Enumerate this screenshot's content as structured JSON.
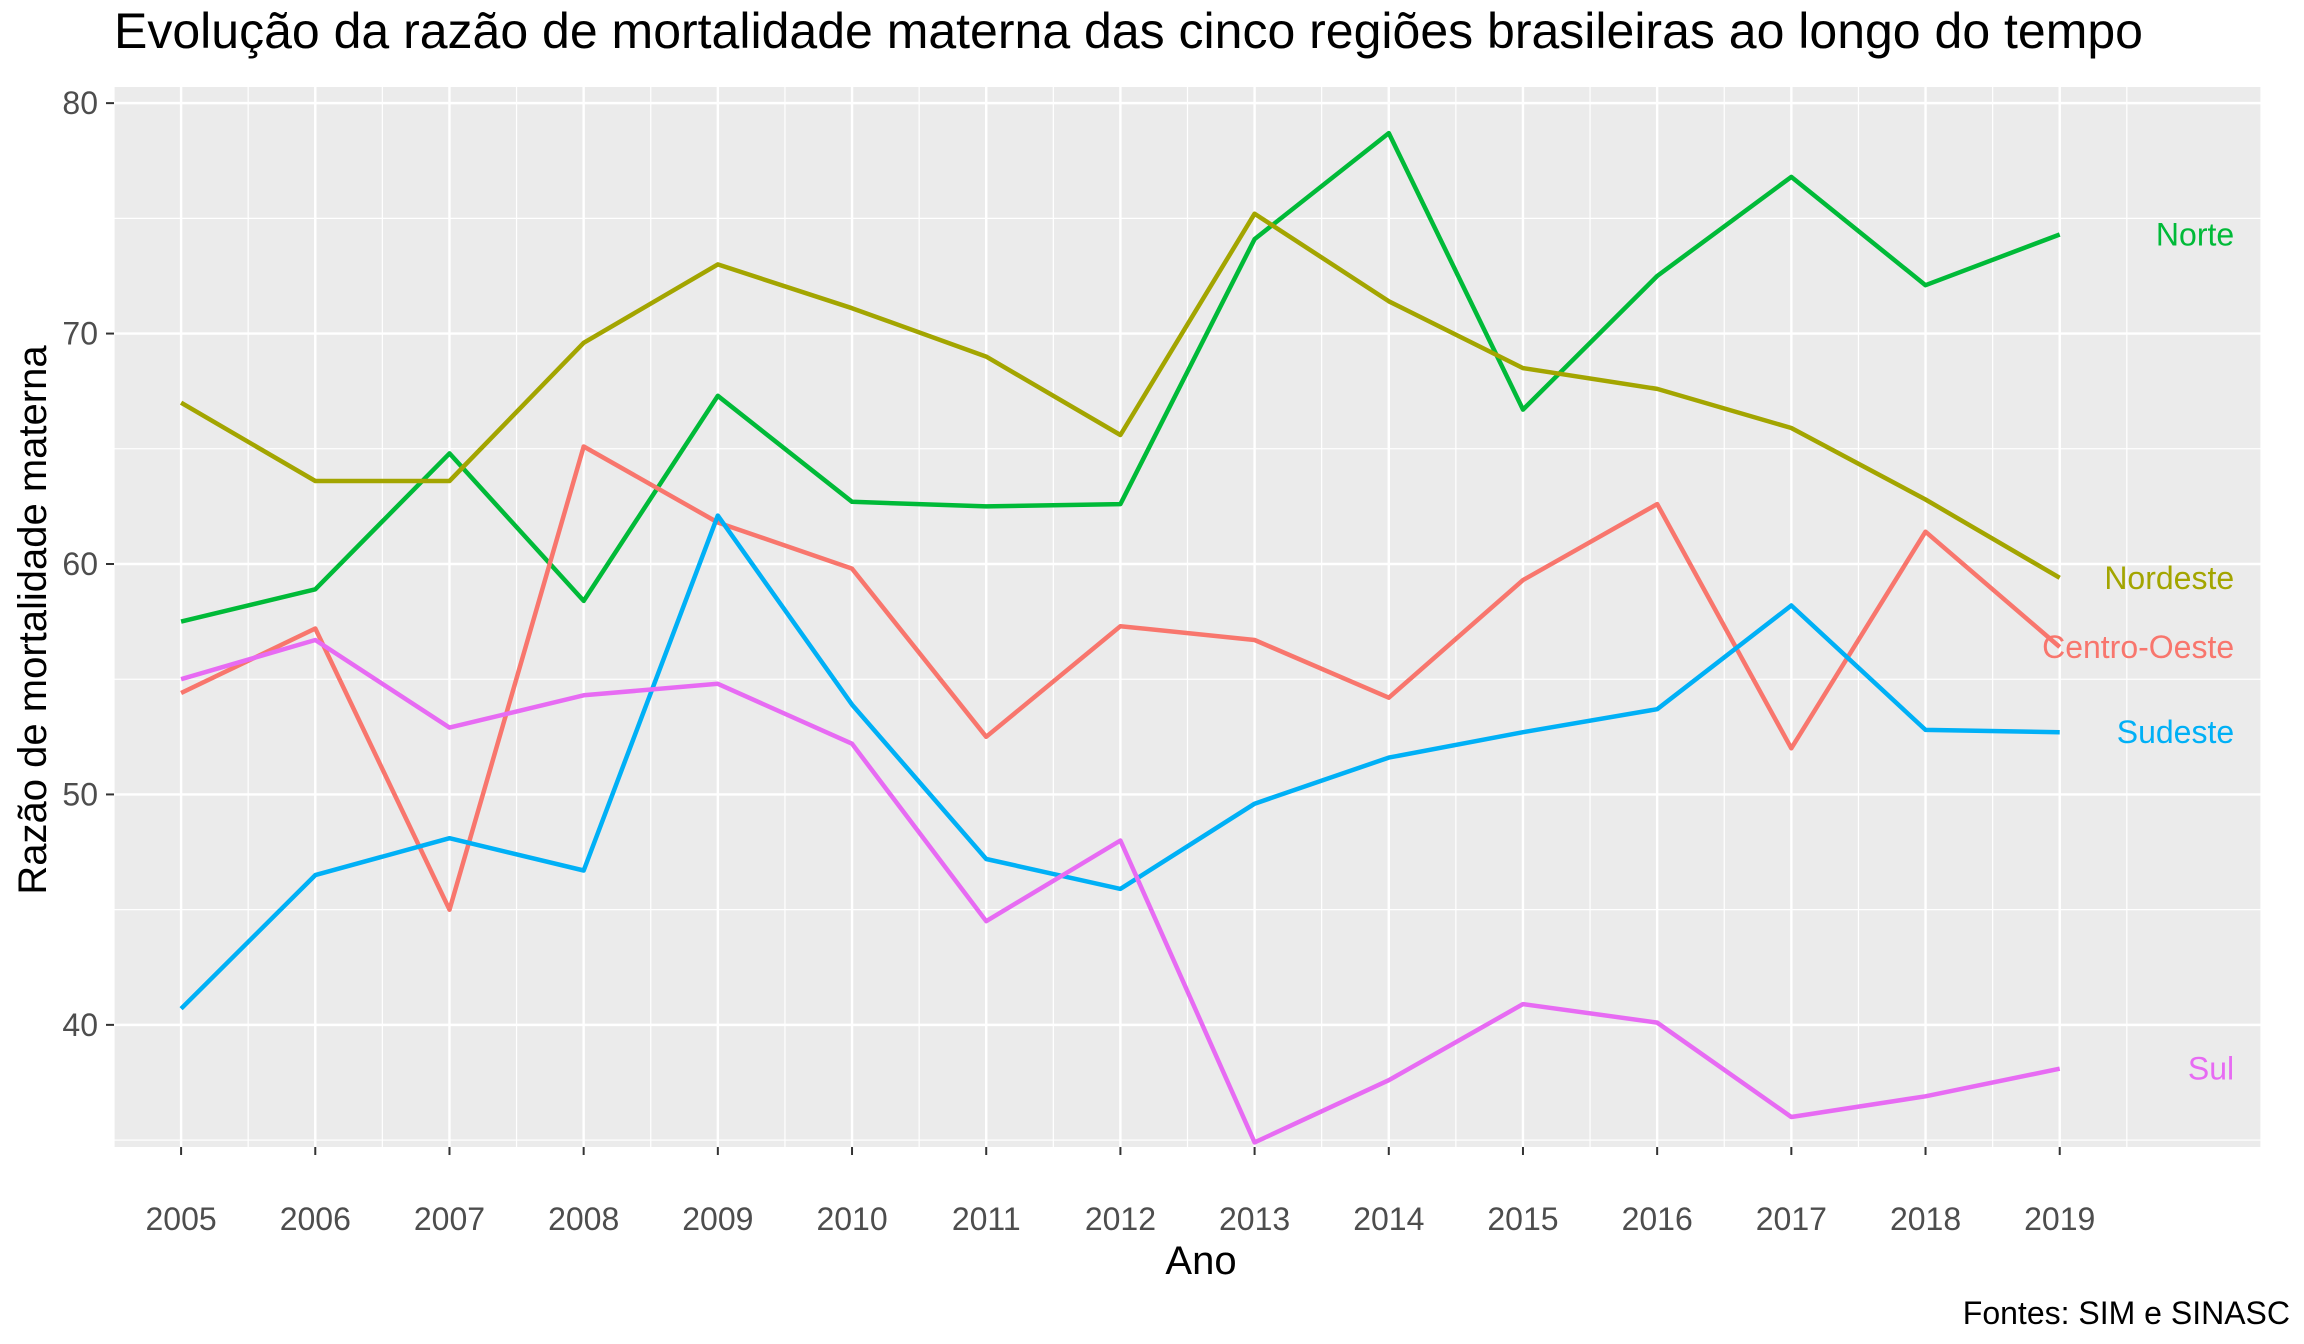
{
  "chart_data": {
    "type": "line",
    "title": "Evolução da razão de mortalidade materna das cinco regiões brasileiras ao longo do tempo",
    "xlabel": "Ano",
    "ylabel": "Razão de mortalidade materna",
    "caption": "Fontes: SIM e SINASC",
    "x": [
      "2005",
      "2006",
      "2007",
      "2008",
      "2009",
      "2010",
      "2011",
      "2012",
      "2013",
      "2014",
      "2015",
      "2016",
      "2017",
      "2018",
      "2019"
    ],
    "xlim": [
      2004.5,
      2020.5
    ],
    "ylim": [
      34.7,
      80.7
    ],
    "yticks": [
      40,
      50,
      60,
      70,
      80
    ],
    "grid": true,
    "legend": "direct labels at line ends",
    "background_color": "#ebebeb",
    "series": [
      {
        "name": "Norte",
        "color": "#00BA38",
        "values": [
          57.5,
          58.9,
          64.8,
          58.4,
          67.3,
          62.7,
          62.5,
          62.6,
          74.1,
          78.7,
          66.7,
          72.5,
          76.8,
          72.1,
          74.3
        ]
      },
      {
        "name": "Nordeste",
        "color": "#A3A500",
        "values": [
          67.0,
          63.6,
          63.6,
          69.6,
          73.0,
          71.1,
          69.0,
          65.6,
          75.2,
          71.4,
          68.5,
          67.6,
          65.9,
          62.8,
          59.4
        ]
      },
      {
        "name": "Centro-Oeste",
        "color": "#F8766D",
        "values": [
          54.4,
          57.2,
          45.0,
          65.1,
          61.8,
          59.8,
          52.5,
          57.3,
          56.7,
          54.2,
          59.3,
          62.6,
          52.0,
          61.4,
          56.4
        ]
      },
      {
        "name": "Sudeste",
        "color": "#00B0F6",
        "values": [
          40.7,
          46.5,
          48.1,
          46.7,
          62.1,
          53.9,
          47.2,
          45.9,
          49.6,
          51.6,
          52.7,
          53.7,
          58.2,
          52.8,
          52.7
        ]
      },
      {
        "name": "Sul",
        "color": "#E76BF3",
        "values": [
          55.0,
          56.7,
          52.9,
          54.3,
          54.8,
          52.2,
          44.5,
          48.0,
          34.9,
          37.6,
          40.9,
          40.1,
          36.0,
          36.9,
          38.1
        ]
      }
    ]
  }
}
